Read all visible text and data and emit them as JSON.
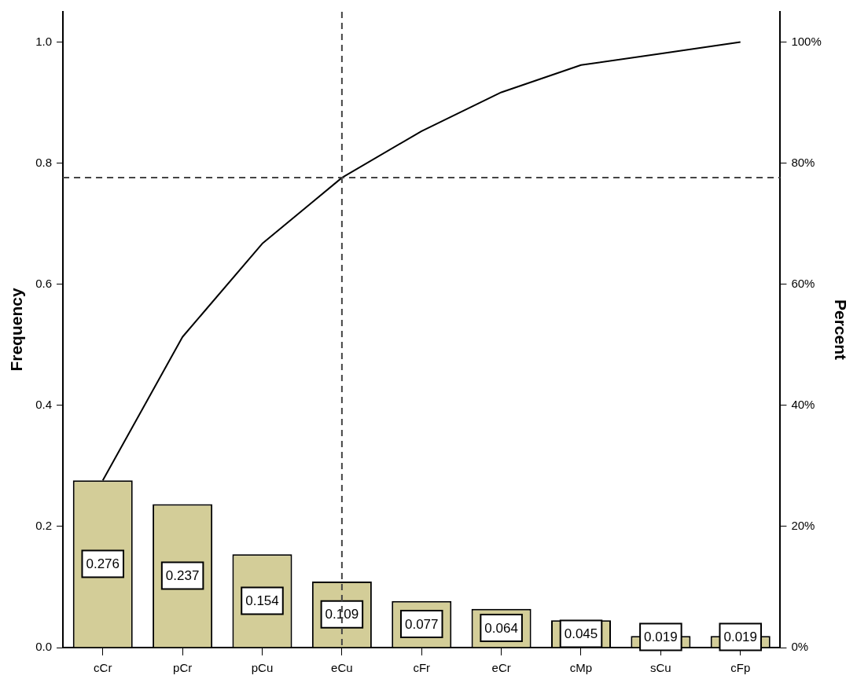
{
  "chart_data": {
    "type": "bar",
    "categories": [
      "cCr",
      "pCr",
      "pCu",
      "eCu",
      "cFr",
      "eCr",
      "cMp",
      "sCu",
      "cFp"
    ],
    "series": [
      {
        "color": "#d3cd98",
        "values": [
          0.276,
          0.237,
          0.154,
          0.109,
          0.077,
          0.064,
          0.045,
          0.019,
          0.019
        ],
        "value_labels": [
          "0.276",
          "0.237",
          "0.154",
          "0.109",
          "0.077",
          "0.064",
          "0.045",
          "0.019",
          "0.019"
        ]
      },
      {
        "type": "line",
        "axis": "y2",
        "color": "#000000",
        "values": [
          27.6,
          51.3,
          66.7,
          77.6,
          85.3,
          91.7,
          96.2,
          98.1,
          100
        ]
      }
    ],
    "ylabel": "Frequency",
    "y2label": "Percent",
    "ylim": [
      0,
      1.05
    ],
    "yticks": [
      {
        "value": 0,
        "label": "0.0"
      },
      0.2,
      0.4,
      0.6,
      0.8,
      {
        "value": 1,
        "label": "1.0"
      }
    ],
    "y2lim": [
      0,
      105
    ],
    "y2ticks": [
      {
        "value": 0,
        "label": "0%"
      },
      {
        "value": 20,
        "label": "20%"
      },
      {
        "value": 40,
        "label": "40%"
      },
      {
        "value": 60,
        "label": "60%"
      },
      {
        "value": 80,
        "label": "80%"
      },
      {
        "value": 100,
        "label": "100%"
      }
    ],
    "ref_lines": [
      {
        "axis": "x",
        "value": "eCu",
        "color": "#444444",
        "line_style": "dashed"
      },
      {
        "axis": "y2",
        "value": 77.6,
        "color": "#444444",
        "line_style": "dashed"
      }
    ],
    "grid": false,
    "legend": false,
    "marker": "none",
    "line_style": "solid"
  }
}
